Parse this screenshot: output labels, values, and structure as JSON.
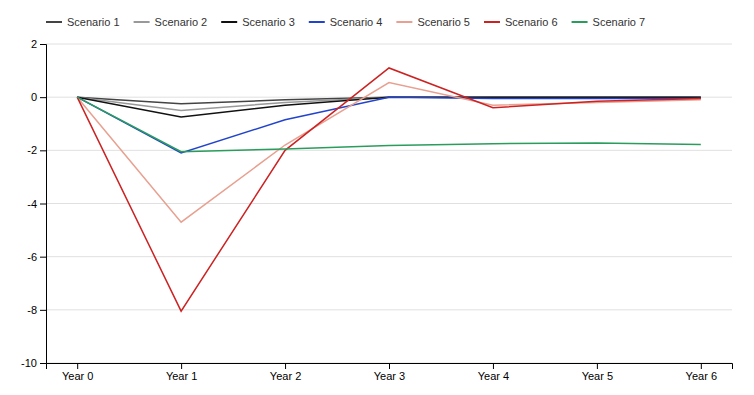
{
  "chart_data": {
    "type": "line",
    "categories": [
      "Year 0",
      "Year 1",
      "Year 2",
      "Year 3",
      "Year 4",
      "Year 5",
      "Year 6"
    ],
    "series": [
      {
        "name": "Scenario 1",
        "color": "#444444",
        "values": [
          0,
          -0.25,
          -0.1,
          0,
          0,
          0,
          0
        ]
      },
      {
        "name": "Scenario 2",
        "color": "#999999",
        "values": [
          0,
          -0.5,
          -0.2,
          0,
          0,
          0,
          0
        ]
      },
      {
        "name": "Scenario 3",
        "color": "#111111",
        "values": [
          0,
          -0.75,
          -0.3,
          0,
          0,
          0,
          0
        ]
      },
      {
        "name": "Scenario 4",
        "color": "#2244cc",
        "values": [
          0,
          -2.1,
          -0.85,
          0,
          -0.05,
          -0.05,
          -0.05
        ]
      },
      {
        "name": "Scenario 5",
        "color": "#e8a090",
        "values": [
          0,
          -4.7,
          -1.8,
          0.55,
          -0.3,
          -0.2,
          -0.1
        ]
      },
      {
        "name": "Scenario 6",
        "color": "#cc2222",
        "values": [
          0,
          -8.05,
          -2.0,
          1.1,
          -0.4,
          -0.15,
          -0.05
        ]
      },
      {
        "name": "Scenario 7",
        "color": "#2a9d5c",
        "values": [
          0,
          -2.05,
          -1.95,
          -1.82,
          -1.75,
          -1.72,
          -1.78
        ]
      }
    ],
    "ylim": [
      -10,
      2
    ],
    "yticks": [
      -10,
      -8,
      -6,
      -4,
      -2,
      0,
      2
    ],
    "grid": true,
    "legend": "upper left"
  }
}
